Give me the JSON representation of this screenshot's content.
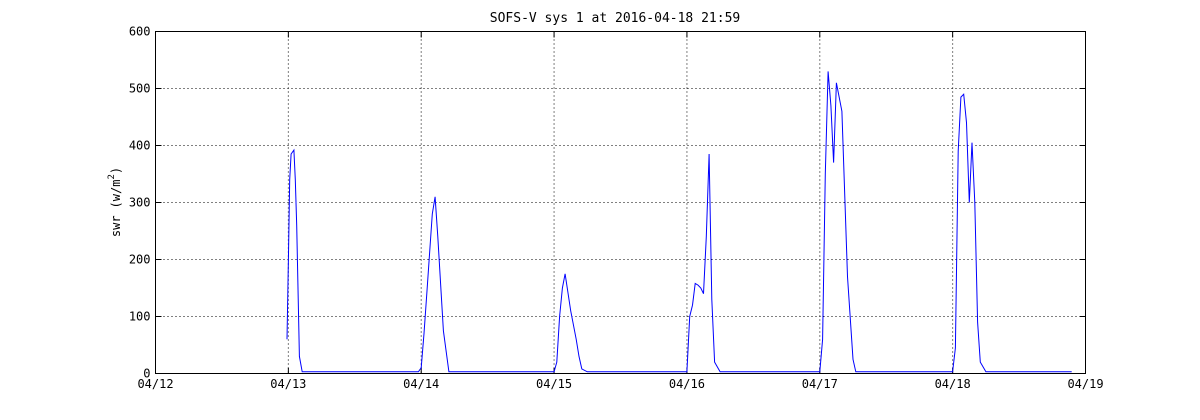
{
  "chart_data": {
    "type": "line",
    "title": "SOFS-V sys 1 at 2016-04-18 21:59",
    "xlabel": "",
    "ylabel": "swr",
    "ylabel_unit": "(w/m",
    "ylabel_unit_sup": "2",
    "ylabel_unit_close": ")",
    "ylim": [
      0,
      600
    ],
    "yticks": [
      "0",
      "100",
      "200",
      "300",
      "400",
      "500",
      "600"
    ],
    "xlim": [
      "2016-04-12T00:00",
      "2016-04-19T00:00"
    ],
    "xticks": [
      "04/12",
      "04/13",
      "04/14",
      "04/15",
      "04/16",
      "04/17",
      "04/18",
      "04/19"
    ],
    "grid": true,
    "series": [
      {
        "color": "#0000ff",
        "x": [
          "2016-04-12T23:45",
          "2016-04-13T00:00",
          "2016-04-13T00:15",
          "2016-04-13T00:30",
          "2016-04-13T01:00",
          "2016-04-13T01:15",
          "2016-04-13T01:30",
          "2016-04-13T02:00",
          "2016-04-13T02:30",
          "2016-04-13T03:00",
          "2016-04-13T04:00",
          "2016-04-13T04:30",
          "2016-04-13T05:00",
          "2016-04-13T23:30",
          "2016-04-14T00:00",
          "2016-04-14T00:30",
          "2016-04-14T01:00",
          "2016-04-14T02:00",
          "2016-04-14T02:30",
          "2016-04-14T03:00",
          "2016-04-14T04:00",
          "2016-04-14T05:00",
          "2016-04-14T06:00",
          "2016-04-14T23:30",
          "2016-04-15T00:00",
          "2016-04-15T00:30",
          "2016-04-15T01:00",
          "2016-04-15T01:30",
          "2016-04-15T02:00",
          "2016-04-15T03:00",
          "2016-04-15T04:00",
          "2016-04-15T04:30",
          "2016-04-15T05:00",
          "2016-04-15T06:00",
          "2016-04-15T23:00",
          "2016-04-15T23:45",
          "2016-04-16T00:00",
          "2016-04-16T00:30",
          "2016-04-16T01:00",
          "2016-04-16T01:30",
          "2016-04-16T02:00",
          "2016-04-16T02:30",
          "2016-04-16T03:00",
          "2016-04-16T03:30",
          "2016-04-16T04:00",
          "2016-04-16T04:30",
          "2016-04-16T05:00",
          "2016-04-16T06:00",
          "2016-04-16T23:15",
          "2016-04-16T23:45",
          "2016-04-17T00:00",
          "2016-04-17T00:30",
          "2016-04-17T01:00",
          "2016-04-17T01:30",
          "2016-04-17T02:00",
          "2016-04-17T02:30",
          "2016-04-17T03:00",
          "2016-04-17T04:00",
          "2016-04-17T05:00",
          "2016-04-17T06:00",
          "2016-04-17T06:30",
          "2016-04-17T07:30",
          "2016-04-17T23:00",
          "2016-04-17T23:30",
          "2016-04-18T00:00",
          "2016-04-18T00:30",
          "2016-04-18T01:00",
          "2016-04-18T01:30",
          "2016-04-18T02:00",
          "2016-04-18T02:30",
          "2016-04-18T03:00",
          "2016-04-18T03:30",
          "2016-04-18T04:00",
          "2016-04-18T04:30",
          "2016-04-18T05:00",
          "2016-04-18T06:00",
          "2016-04-18T21:30"
        ],
        "y": [
          60,
          200,
          340,
          385,
          392,
          340,
          260,
          30,
          3,
          3,
          3,
          3,
          3,
          3,
          10,
          70,
          140,
          280,
          310,
          240,
          75,
          3,
          3,
          3,
          3,
          20,
          100,
          150,
          175,
          110,
          60,
          30,
          8,
          3,
          3,
          3,
          3,
          100,
          120,
          158,
          155,
          150,
          140,
          240,
          385,
          130,
          20,
          3,
          3,
          3,
          3,
          60,
          350,
          530,
          470,
          370,
          510,
          460,
          170,
          25,
          3,
          3,
          3,
          3,
          3,
          45,
          390,
          485,
          490,
          440,
          300,
          405,
          300,
          90,
          20,
          3,
          3
        ]
      }
    ]
  }
}
